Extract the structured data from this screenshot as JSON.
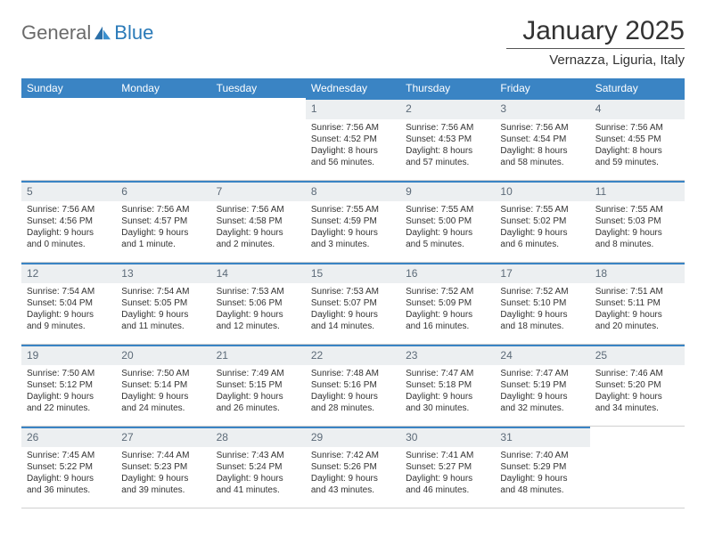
{
  "logo": {
    "text_general": "General",
    "text_blue": "Blue"
  },
  "title": "January 2025",
  "location": "Vernazza, Liguria, Italy",
  "colors": {
    "header_bg": "#3a84c4",
    "header_text": "#ffffff",
    "daynum_bg": "#eceff1",
    "daynum_text": "#5c6a78",
    "border_top": "#3a84c4",
    "body_text": "#333333"
  },
  "weekdays": [
    "Sunday",
    "Monday",
    "Tuesday",
    "Wednesday",
    "Thursday",
    "Friday",
    "Saturday"
  ],
  "weeks": [
    [
      {
        "n": "",
        "l1": "",
        "l2": "",
        "l3": "",
        "l4": ""
      },
      {
        "n": "",
        "l1": "",
        "l2": "",
        "l3": "",
        "l4": ""
      },
      {
        "n": "",
        "l1": "",
        "l2": "",
        "l3": "",
        "l4": ""
      },
      {
        "n": "1",
        "l1": "Sunrise: 7:56 AM",
        "l2": "Sunset: 4:52 PM",
        "l3": "Daylight: 8 hours",
        "l4": "and 56 minutes."
      },
      {
        "n": "2",
        "l1": "Sunrise: 7:56 AM",
        "l2": "Sunset: 4:53 PM",
        "l3": "Daylight: 8 hours",
        "l4": "and 57 minutes."
      },
      {
        "n": "3",
        "l1": "Sunrise: 7:56 AM",
        "l2": "Sunset: 4:54 PM",
        "l3": "Daylight: 8 hours",
        "l4": "and 58 minutes."
      },
      {
        "n": "4",
        "l1": "Sunrise: 7:56 AM",
        "l2": "Sunset: 4:55 PM",
        "l3": "Daylight: 8 hours",
        "l4": "and 59 minutes."
      }
    ],
    [
      {
        "n": "5",
        "l1": "Sunrise: 7:56 AM",
        "l2": "Sunset: 4:56 PM",
        "l3": "Daylight: 9 hours",
        "l4": "and 0 minutes."
      },
      {
        "n": "6",
        "l1": "Sunrise: 7:56 AM",
        "l2": "Sunset: 4:57 PM",
        "l3": "Daylight: 9 hours",
        "l4": "and 1 minute."
      },
      {
        "n": "7",
        "l1": "Sunrise: 7:56 AM",
        "l2": "Sunset: 4:58 PM",
        "l3": "Daylight: 9 hours",
        "l4": "and 2 minutes."
      },
      {
        "n": "8",
        "l1": "Sunrise: 7:55 AM",
        "l2": "Sunset: 4:59 PM",
        "l3": "Daylight: 9 hours",
        "l4": "and 3 minutes."
      },
      {
        "n": "9",
        "l1": "Sunrise: 7:55 AM",
        "l2": "Sunset: 5:00 PM",
        "l3": "Daylight: 9 hours",
        "l4": "and 5 minutes."
      },
      {
        "n": "10",
        "l1": "Sunrise: 7:55 AM",
        "l2": "Sunset: 5:02 PM",
        "l3": "Daylight: 9 hours",
        "l4": "and 6 minutes."
      },
      {
        "n": "11",
        "l1": "Sunrise: 7:55 AM",
        "l2": "Sunset: 5:03 PM",
        "l3": "Daylight: 9 hours",
        "l4": "and 8 minutes."
      }
    ],
    [
      {
        "n": "12",
        "l1": "Sunrise: 7:54 AM",
        "l2": "Sunset: 5:04 PM",
        "l3": "Daylight: 9 hours",
        "l4": "and 9 minutes."
      },
      {
        "n": "13",
        "l1": "Sunrise: 7:54 AM",
        "l2": "Sunset: 5:05 PM",
        "l3": "Daylight: 9 hours",
        "l4": "and 11 minutes."
      },
      {
        "n": "14",
        "l1": "Sunrise: 7:53 AM",
        "l2": "Sunset: 5:06 PM",
        "l3": "Daylight: 9 hours",
        "l4": "and 12 minutes."
      },
      {
        "n": "15",
        "l1": "Sunrise: 7:53 AM",
        "l2": "Sunset: 5:07 PM",
        "l3": "Daylight: 9 hours",
        "l4": "and 14 minutes."
      },
      {
        "n": "16",
        "l1": "Sunrise: 7:52 AM",
        "l2": "Sunset: 5:09 PM",
        "l3": "Daylight: 9 hours",
        "l4": "and 16 minutes."
      },
      {
        "n": "17",
        "l1": "Sunrise: 7:52 AM",
        "l2": "Sunset: 5:10 PM",
        "l3": "Daylight: 9 hours",
        "l4": "and 18 minutes."
      },
      {
        "n": "18",
        "l1": "Sunrise: 7:51 AM",
        "l2": "Sunset: 5:11 PM",
        "l3": "Daylight: 9 hours",
        "l4": "and 20 minutes."
      }
    ],
    [
      {
        "n": "19",
        "l1": "Sunrise: 7:50 AM",
        "l2": "Sunset: 5:12 PM",
        "l3": "Daylight: 9 hours",
        "l4": "and 22 minutes."
      },
      {
        "n": "20",
        "l1": "Sunrise: 7:50 AM",
        "l2": "Sunset: 5:14 PM",
        "l3": "Daylight: 9 hours",
        "l4": "and 24 minutes."
      },
      {
        "n": "21",
        "l1": "Sunrise: 7:49 AM",
        "l2": "Sunset: 5:15 PM",
        "l3": "Daylight: 9 hours",
        "l4": "and 26 minutes."
      },
      {
        "n": "22",
        "l1": "Sunrise: 7:48 AM",
        "l2": "Sunset: 5:16 PM",
        "l3": "Daylight: 9 hours",
        "l4": "and 28 minutes."
      },
      {
        "n": "23",
        "l1": "Sunrise: 7:47 AM",
        "l2": "Sunset: 5:18 PM",
        "l3": "Daylight: 9 hours",
        "l4": "and 30 minutes."
      },
      {
        "n": "24",
        "l1": "Sunrise: 7:47 AM",
        "l2": "Sunset: 5:19 PM",
        "l3": "Daylight: 9 hours",
        "l4": "and 32 minutes."
      },
      {
        "n": "25",
        "l1": "Sunrise: 7:46 AM",
        "l2": "Sunset: 5:20 PM",
        "l3": "Daylight: 9 hours",
        "l4": "and 34 minutes."
      }
    ],
    [
      {
        "n": "26",
        "l1": "Sunrise: 7:45 AM",
        "l2": "Sunset: 5:22 PM",
        "l3": "Daylight: 9 hours",
        "l4": "and 36 minutes."
      },
      {
        "n": "27",
        "l1": "Sunrise: 7:44 AM",
        "l2": "Sunset: 5:23 PM",
        "l3": "Daylight: 9 hours",
        "l4": "and 39 minutes."
      },
      {
        "n": "28",
        "l1": "Sunrise: 7:43 AM",
        "l2": "Sunset: 5:24 PM",
        "l3": "Daylight: 9 hours",
        "l4": "and 41 minutes."
      },
      {
        "n": "29",
        "l1": "Sunrise: 7:42 AM",
        "l2": "Sunset: 5:26 PM",
        "l3": "Daylight: 9 hours",
        "l4": "and 43 minutes."
      },
      {
        "n": "30",
        "l1": "Sunrise: 7:41 AM",
        "l2": "Sunset: 5:27 PM",
        "l3": "Daylight: 9 hours",
        "l4": "and 46 minutes."
      },
      {
        "n": "31",
        "l1": "Sunrise: 7:40 AM",
        "l2": "Sunset: 5:29 PM",
        "l3": "Daylight: 9 hours",
        "l4": "and 48 minutes."
      },
      {
        "n": "",
        "l1": "",
        "l2": "",
        "l3": "",
        "l4": ""
      }
    ]
  ]
}
